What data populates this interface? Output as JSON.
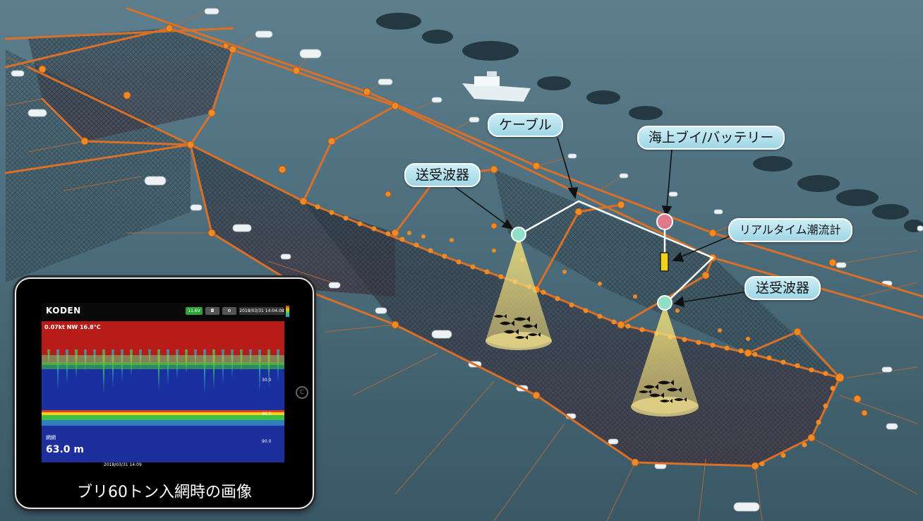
{
  "labels": {
    "cable": "ケーブル",
    "buoy": "海上ブイ/バッテリー",
    "transducer_left": "送受波器",
    "transducer_right": "送受波器",
    "current_meter": "リアルタイム潮流計"
  },
  "tablet": {
    "brand": "KODEN",
    "status_voltage": "11.6V",
    "status_date": "2018/03/31 14:04:08",
    "readout_current": "0.07kt NW 16.8°C",
    "net_label": "網網",
    "depth": "63.0 m",
    "timestamp": "2018/03/31 14:09",
    "scale_marks": [
      "30.0",
      "60.0",
      "90.0"
    ],
    "caption": "ブリ60トン入網時の画像"
  },
  "colors": {
    "sea": "#3f5e6c",
    "rope": "#d9702a",
    "float": "#f08a24",
    "callout": "#9fd6e6",
    "buoy": "#e07a8a",
    "transducer": "#8fe0c6",
    "meter": "#f2d21a"
  }
}
